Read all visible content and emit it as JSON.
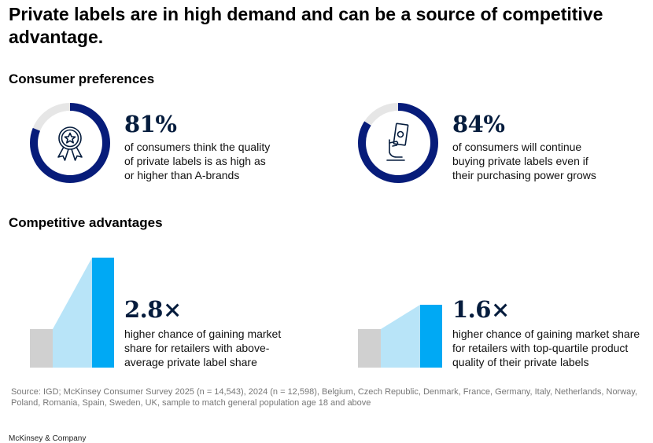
{
  "title": "Private labels are in high demand and can be a source of competitive advantage.",
  "sections": {
    "preferences": "Consumer preferences",
    "advantages": "Competitive advantages"
  },
  "colors": {
    "navy": "#071c7a",
    "ring_track": "#e6e6e6",
    "dark_text": "#051c3d",
    "gray_bar": "#d0d0d0",
    "light_blue": "#b8e4f8",
    "bright_blue": "#00a9f4"
  },
  "stats": [
    {
      "value": "81%",
      "lines": [
        "of consumers think the quality",
        "of private labels is as high as",
        "or higher than A-brands"
      ],
      "icon": "award-ribbon-icon"
    },
    {
      "value": "84%",
      "lines": [
        "of consumers will continue",
        "buying private labels even if",
        "their purchasing power grows"
      ],
      "icon": "hand-money-icon"
    }
  ],
  "advantages": [
    {
      "value": "2.8×",
      "lines": [
        "higher chance of gaining market",
        "share for retailers with above-",
        "average private label share"
      ]
    },
    {
      "value": "1.6×",
      "lines": [
        "higher chance of gaining market share",
        "for retailers with top-quartile product",
        "quality of their private labels"
      ]
    }
  ],
  "chart_data": [
    {
      "type": "pie",
      "slices": [
        {
          "value": 81
        },
        {
          "value": 19
        }
      ]
    },
    {
      "type": "pie",
      "slices": [
        {
          "value": 84
        },
        {
          "value": 16
        }
      ]
    },
    {
      "type": "bar",
      "values": [
        1,
        2.8
      ]
    },
    {
      "type": "bar",
      "values": [
        1,
        1.6
      ]
    }
  ],
  "source": "Source: IGD; McKinsey Consumer Survey 2025 (n = 14,543), 2024 (n = 12,598), Belgium, Czech Republic, Denmark, France, Germany, Italy, Netherlands, Norway, Poland, Romania, Spain, Sweden, UK, sample to match general population age 18 and above",
  "brand": "McKinsey & Company"
}
